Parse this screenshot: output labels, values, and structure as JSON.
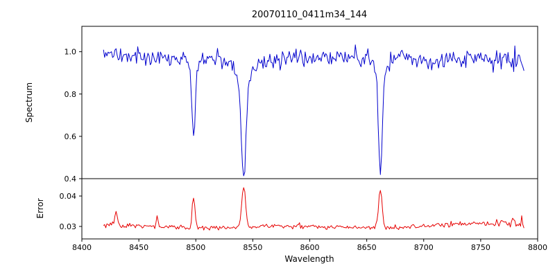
{
  "figure": {
    "title": "20070110_0411m34_144",
    "xlabel": "Wavelength",
    "background_color": "#ffffff",
    "frame_color": "#000000"
  },
  "chart_data": [
    {
      "type": "line",
      "panel": "top",
      "title": "20070110_0411m34_144",
      "ylabel": "Spectrum",
      "xlabel": "Wavelength",
      "xlim": [
        8400,
        8800
      ],
      "ylim": [
        0.4,
        1.12
      ],
      "xticks": [
        8400,
        8450,
        8500,
        8550,
        8600,
        8650,
        8700,
        8750,
        8800
      ],
      "xtick_labels": [
        "8400",
        "8450",
        "8500",
        "8550",
        "8600",
        "8650",
        "8700",
        "8750",
        "8800"
      ],
      "yticks": [
        0.4,
        0.6,
        0.8,
        1.0
      ],
      "ytick_labels": [
        "0.4",
        "0.6",
        "0.8",
        "1.0"
      ],
      "grid": false,
      "legend": null,
      "series": [
        {
          "name": "spectrum",
          "color": "#0000cd",
          "x_start": 8419,
          "x_end": 8788,
          "x_step": 1,
          "continuum_level": 0.97,
          "noise_sigma": 0.018,
          "absorption_lines": [
            {
              "center": 8498,
              "min_value": 0.59,
              "core_sigma": 1.4,
              "wing_depth": 0.05,
              "wing_sigma": 3.5
            },
            {
              "center": 8542,
              "min_value": 0.42,
              "core_sigma": 1.9,
              "wing_depth": 0.14,
              "wing_sigma": 5.5
            },
            {
              "center": 8662,
              "min_value": 0.44,
              "core_sigma": 1.7,
              "wing_depth": 0.1,
              "wing_sigma": 4.5
            }
          ]
        }
      ]
    },
    {
      "type": "line",
      "panel": "bottom",
      "ylabel": "Error",
      "xlabel": "Wavelength",
      "xlim": [
        8400,
        8800
      ],
      "ylim": [
        0.0259,
        0.0457
      ],
      "xticks": [
        8400,
        8450,
        8500,
        8550,
        8600,
        8650,
        8700,
        8750,
        8800
      ],
      "xtick_labels": [
        "8400",
        "8450",
        "8500",
        "8550",
        "8600",
        "8650",
        "8700",
        "8750",
        "8800"
      ],
      "yticks": [
        0.03,
        0.04
      ],
      "ytick_labels": [
        "0.03",
        "0.04"
      ],
      "grid": false,
      "legend": null,
      "series": [
        {
          "name": "error",
          "color": "#e60000",
          "x_start": 8419,
          "x_end": 8788,
          "x_step": 1,
          "baseline_level": 0.0298,
          "noise_sigma": 0.0004,
          "peaks": [
            {
              "center": 8430,
              "peak_value": 0.0345,
              "sigma": 1.0
            },
            {
              "center": 8466,
              "peak_value": 0.033,
              "sigma": 0.9
            },
            {
              "center": 8498,
              "peak_value": 0.0398,
              "sigma": 1.3
            },
            {
              "center": 8542,
              "peak_value": 0.0432,
              "sigma": 1.7
            },
            {
              "center": 8662,
              "peak_value": 0.0422,
              "sigma": 1.6
            }
          ]
        }
      ]
    }
  ]
}
